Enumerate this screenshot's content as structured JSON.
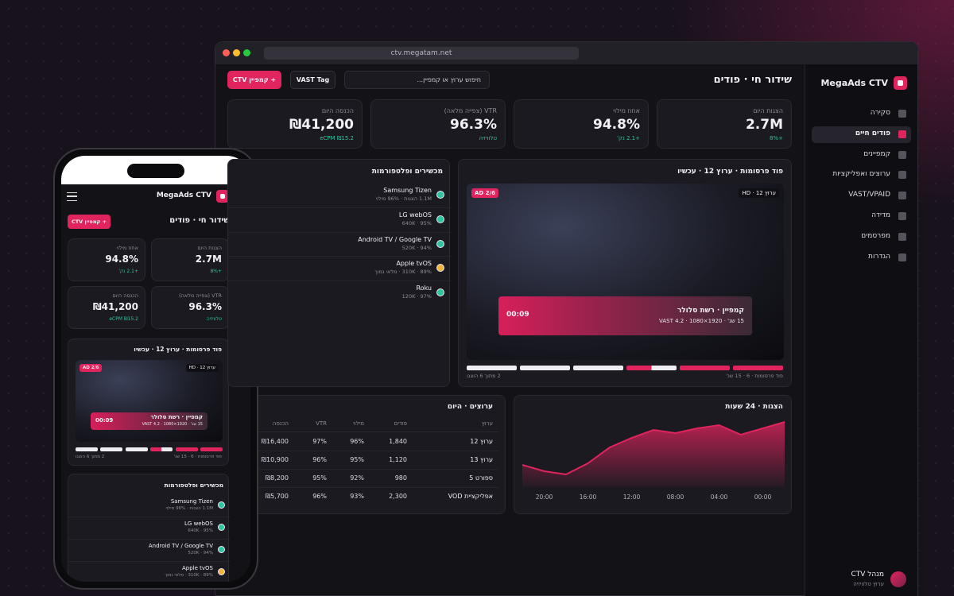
{
  "browser": {
    "url": "ctv.megatam.net"
  },
  "sidebar": {
    "brand": "MegaAds CTV",
    "nav": [
      "סקירה",
      "פודים חיים",
      "קמפיינים",
      "ערוצים ואפליקציות",
      "VAST/VPAID",
      "מדידה",
      "מפרסמים",
      "הגדרות"
    ],
    "user": {
      "name": "מנהל CTV",
      "role": "ערוץ טלוויזיה"
    }
  },
  "header": {
    "title": "שידור חי · פודים",
    "search_placeholder": "חיפוש ערוץ או קמפיין...",
    "vast_button": "VAST Tag",
    "new_campaign": "+ קמפיין CTV"
  },
  "kpis": [
    {
      "label": "הצגות היום",
      "value": "2.7M",
      "delta": "+8%"
    },
    {
      "label": "אחוז מילוי",
      "value": "94.8%",
      "delta": "+2.1 נק'"
    },
    {
      "label": "VTR (צפייה מלאה)",
      "value": "96.3%",
      "delta": "טלוויזיה"
    },
    {
      "label": "הכנסה היום",
      "value": "₪41,200",
      "delta": "eCPM ₪15.2"
    }
  ],
  "pod": {
    "title": "פוד פרסומות · ערוץ 12 · עכשיו",
    "ad_badge": "AD 2/6",
    "channel_badge": "ערוץ 12 · HD",
    "campaign": "קמפיין · רשת סלולר",
    "spec": "15 שנ' · 1920×1080 · VAST 4.2",
    "countdown": "00:09",
    "pod_info": "פוד פרסומות · 6 · 15 שנ'",
    "progress": "2 מתוך 6 הוצגו"
  },
  "devices": {
    "title": "מכשירים ופלטפורמות",
    "rows": [
      {
        "name": "Samsung Tizen",
        "detail": "1.1M הצגות · 96% מילוי",
        "status_color": "#2ec4a0"
      },
      {
        "name": "LG webOS",
        "detail": "640K · 95%",
        "status_color": "#2ec4a0"
      },
      {
        "name": "Android TV / Google TV",
        "detail": "520K · 94%",
        "status_color": "#2ec4a0"
      },
      {
        "name": "Apple tvOS",
        "detail": "310K · 89% · מלאי נמוך",
        "status_color": "#f0b43c"
      },
      {
        "name": "Roku",
        "detail": "120K · 97%",
        "status_color": "#2ec4a0"
      }
    ]
  },
  "chart_data": {
    "type": "area",
    "title": "הצגות · 24 שעות",
    "categories": [
      null,
      "00:00",
      null,
      "04:00",
      null,
      "08:00",
      null,
      "12:00",
      null,
      "16:00",
      null,
      "20:00",
      null
    ],
    "values": [
      82,
      74,
      66,
      78,
      74,
      68,
      72,
      62,
      50,
      30,
      16,
      20,
      28
    ],
    "color": "#e0245e"
  },
  "channels": {
    "title": "ערוצים · היום",
    "columns": [
      "ערוץ",
      "פודים",
      "מילוי",
      "VTR",
      "הכנסה"
    ],
    "rows": [
      [
        "ערוץ 12",
        "1,840",
        "96%",
        "97%",
        "₪16,400"
      ],
      [
        "ערוץ 13",
        "1,120",
        "95%",
        "96%",
        "₪10,900"
      ],
      [
        "ספורט 5",
        "980",
        "92%",
        "95%",
        "₪8,200"
      ],
      [
        "אפליקציית VOD",
        "2,300",
        "93%",
        "96%",
        "₪5,700"
      ]
    ]
  }
}
